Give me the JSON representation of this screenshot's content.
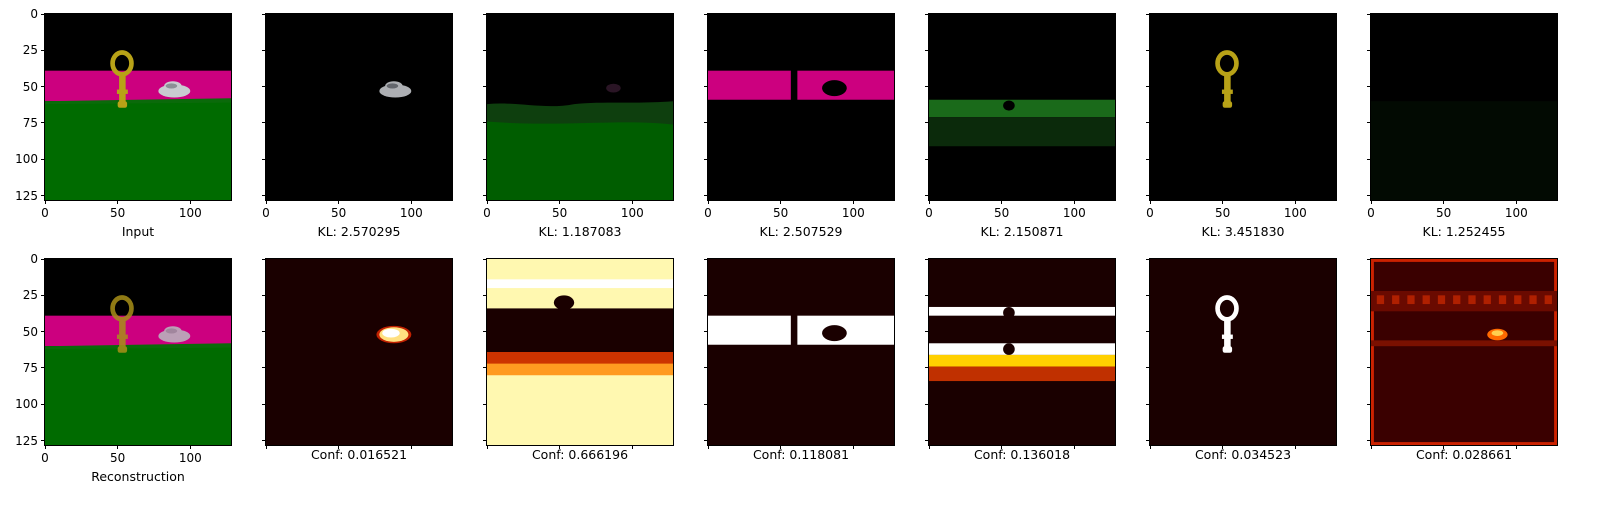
{
  "chart_data": {
    "type": "image-grid",
    "rows": 2,
    "cols": 7,
    "x_range": [
      0,
      128
    ],
    "y_range": [
      0,
      128
    ],
    "x_ticks": [
      0,
      50,
      100
    ],
    "y_ticks": [
      0,
      25,
      50,
      75,
      100,
      125
    ],
    "colormap_bottom": "hot",
    "top_row": [
      {
        "caption": "Input",
        "content": "full-scene",
        "slot_kl": null
      },
      {
        "caption": "KL: 2.570295",
        "content": "car",
        "slot_kl": 2.570295
      },
      {
        "caption": "KL: 1.187083",
        "content": "floor",
        "slot_kl": 1.187083
      },
      {
        "caption": "KL: 2.507529",
        "content": "wall",
        "slot_kl": 2.507529
      },
      {
        "caption": "KL: 2.150871",
        "content": "floor-band",
        "slot_kl": 2.150871
      },
      {
        "caption": "KL: 3.451830",
        "content": "key",
        "slot_kl": 3.45183
      },
      {
        "caption": "KL: 1.252455",
        "content": "empty",
        "slot_kl": 1.252455
      }
    ],
    "bottom_row": [
      {
        "caption": "Reconstruction",
        "content": "reconstruction",
        "conf": null
      },
      {
        "caption": "Conf: 0.016521",
        "content": "mask-car",
        "conf": 0.016521
      },
      {
        "caption": "Conf: 0.666196",
        "content": "mask-floor",
        "conf": 0.666196
      },
      {
        "caption": "Conf: 0.118081",
        "content": "mask-wall",
        "conf": 0.118081
      },
      {
        "caption": "Conf: 0.136018",
        "content": "mask-band",
        "conf": 0.136018
      },
      {
        "caption": "Conf: 0.034523",
        "content": "mask-key",
        "conf": 0.034523
      },
      {
        "caption": "Conf: 0.028661",
        "content": "mask-noise",
        "conf": 0.028661
      }
    ]
  },
  "colors": {
    "wall_magenta": "#cc007f",
    "floor_green": "#006b00",
    "key_gold": "#b8a217",
    "car_silver": "#c9ccd0",
    "mask_dark": "#1a0000",
    "mask_white": "#ffffff",
    "mask_yellow": "#fff8b0",
    "mask_red": "#cc2200"
  }
}
